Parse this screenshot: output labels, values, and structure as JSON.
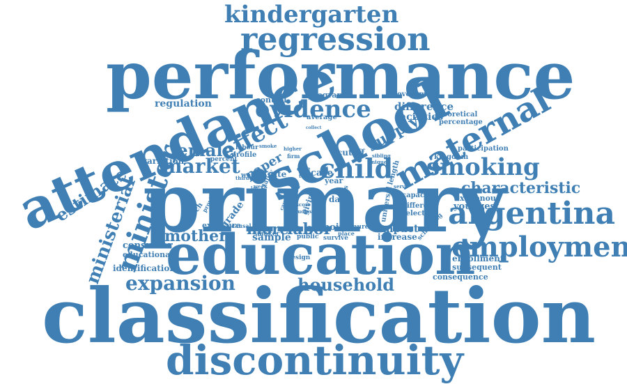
{
  "color": "#3f7fb4",
  "words": {
    "kindergarten": "kindergarten",
    "regression": "regression",
    "performance": "performance",
    "attendance": "attendance",
    "school": "school",
    "evidence": "evidence",
    "effect": "effect",
    "maternal": "maternal",
    "supply": "supply",
    "female": "female",
    "market": "market",
    "child": "child",
    "smoking": "smoking",
    "characteristic": "characteristic",
    "argentina": "argentina",
    "estimate": "estimate",
    "minister": "minister",
    "ministerial": "ministerial",
    "primary": "primary",
    "employment": "employment",
    "education": "education",
    "more": "more",
    "labor": "labor",
    "mother": "mother",
    "expansion": "expansion",
    "household": "household",
    "classification": "classification",
    "discontinuity": "discontinuity",
    "regulation": "regulation",
    "control": "control",
    "average": "average",
    "program": "program",
    "government": "government",
    "difference": "difference",
    "facilities": "facilities",
    "theoretical": "theoretical",
    "percentage": "percentage",
    "kingdom": "kingdom",
    "participation": "participation",
    "youngest": "youngest",
    "exogenous": "exogenous",
    "capacity": "capacity",
    "different": "different",
    "selection": "selection",
    "impact": "impact",
    "increase": "increase",
    "enrollment": "enrollment",
    "subsequent": "subsequent",
    "consequence": "consequence",
    "consumer": "consumer",
    "educational": "educational",
    "identification": "identification",
    "variation": "variation",
    "percent": "percent",
    "labour": "labour",
    "smoke": "smoke",
    "profile": "profile",
    "paper": "paper",
    "higher": "higher",
    "firm": "firm",
    "smoker": "smoker",
    "exposure": "exposure",
    "causal": "causal",
    "sample": "sample",
    "public": "public",
    "point": "point",
    "tenure": "tenure",
    "survive": "survive",
    "place": "place",
    "design": "design",
    "case": "case",
    "year": "year",
    "data": "data",
    "cutoff": "cutoff",
    "sibling": "sibling",
    "unique": "unique",
    "collect": "collect",
    "rate": "rate",
    "work": "work",
    "date": "date",
    "test": "test",
    "week": "week",
    "third": "third",
    "lag": "lag",
    "ban": "ban",
    "serve": "serve",
    "score": "score",
    "study": "study",
    "level": "level",
    "grade": "grade",
    "research": "research",
    "provide": "provide",
    "mortality": "mortality",
    "better": "better",
    "cause": "cause",
    "giving": "giving",
    "length": "length",
    "universal": "universal",
    "bias": "bias",
    "schooling": "schooling"
  }
}
